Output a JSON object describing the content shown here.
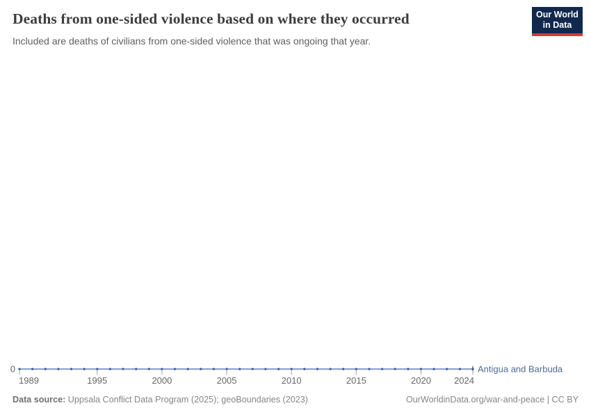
{
  "header": {
    "title": "Deaths from one-sided violence based on where they occurred",
    "subtitle": "Included are deaths of civilians from one-sided violence that was ongoing that year."
  },
  "logo": {
    "line1": "Our World",
    "line2": "in Data",
    "bg_color": "#12294e",
    "accent_color": "#d13c38"
  },
  "axis": {
    "y_zero_label": "0"
  },
  "chart_data": {
    "type": "line",
    "title": "Deaths from one-sided violence based on where they occurred",
    "subtitle": "Included are deaths of civilians from one-sided violence that was ongoing that year.",
    "xlabel": "",
    "ylabel": "",
    "xlim": [
      1989,
      2024
    ],
    "x_ticks": [
      1989,
      1995,
      2000,
      2005,
      2010,
      2015,
      2020,
      2024
    ],
    "y_ticks": [
      0
    ],
    "grid": false,
    "legend_position": "end-of-line",
    "series": [
      {
        "name": "Antigua and Barbuda",
        "x": [
          1989,
          1990,
          1991,
          1992,
          1993,
          1994,
          1995,
          1996,
          1997,
          1998,
          1999,
          2000,
          2001,
          2002,
          2003,
          2004,
          2005,
          2006,
          2007,
          2008,
          2009,
          2010,
          2011,
          2012,
          2013,
          2014,
          2015,
          2016,
          2017,
          2018,
          2019,
          2020,
          2021,
          2022,
          2023,
          2024
        ],
        "values": [
          0,
          0,
          0,
          0,
          0,
          0,
          0,
          0,
          0,
          0,
          0,
          0,
          0,
          0,
          0,
          0,
          0,
          0,
          0,
          0,
          0,
          0,
          0,
          0,
          0,
          0,
          0,
          0,
          0,
          0,
          0,
          0,
          0,
          0,
          0,
          0
        ]
      }
    ],
    "line_color": "#5b7fb5",
    "marker_color": "#35589c",
    "label_color": "#4c6a9c",
    "tick_color": "#9aa5b1"
  },
  "footer": {
    "datasource_label": "Data source:",
    "datasource_text": "Uppsala Conflict Data Program (2025); geoBoundaries (2023)",
    "rights_text": "OurWorldinData.org/war-and-peace | CC BY"
  }
}
